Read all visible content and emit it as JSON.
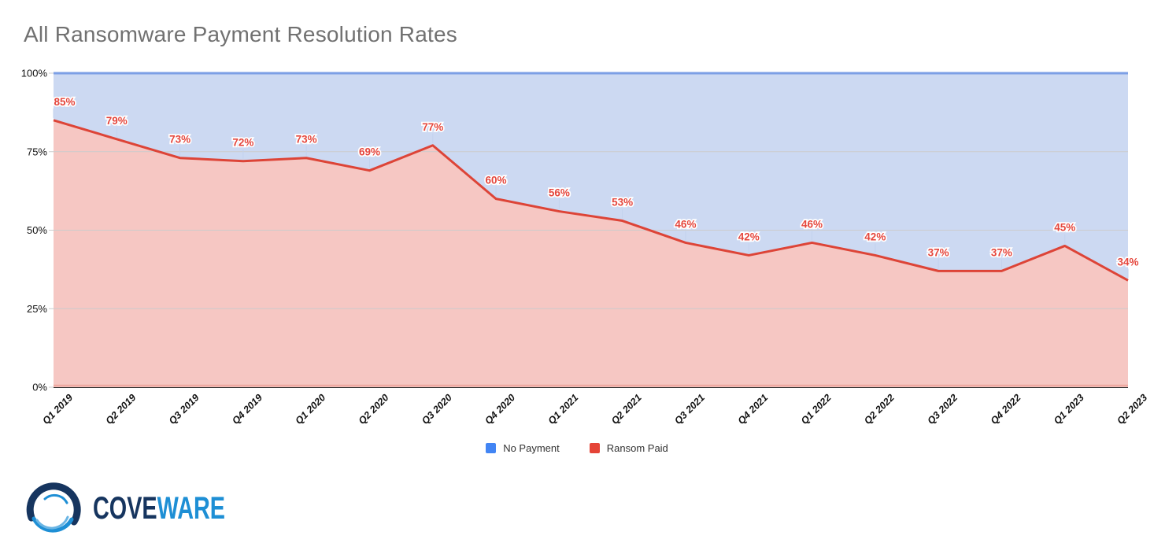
{
  "header": {
    "title": "All Ransomware Payment Resolution Rates"
  },
  "chart_data": {
    "type": "area",
    "stacked_percent": true,
    "title": "All Ransomware Payment Resolution Rates",
    "categories": [
      "Q1 2019",
      "Q2 2019",
      "Q3 2019",
      "Q4 2019",
      "Q1 2020",
      "Q2 2020",
      "Q3 2020",
      "Q4 2020",
      "Q1 2021",
      "Q2 2021",
      "Q3 2021",
      "Q4 2021",
      "Q1 2022",
      "Q2 2022",
      "Q3 2022",
      "Q4 2022",
      "Q1 2023",
      "Q2 2023"
    ],
    "series": [
      {
        "name": "No Payment",
        "legend_color": "#4285f4",
        "line_color": "#7c9fe5",
        "area_fill": "#ccd9f2",
        "values": [
          15,
          21,
          27,
          28,
          27,
          31,
          23,
          40,
          44,
          47,
          54,
          58,
          54,
          58,
          63,
          63,
          55,
          66
        ]
      },
      {
        "name": "Ransom Paid",
        "legend_color": "#e54437",
        "line_color": "#dd4437",
        "area_fill": "#f6c7c3",
        "values": [
          85,
          79,
          73,
          72,
          73,
          69,
          77,
          60,
          56,
          53,
          46,
          42,
          46,
          42,
          37,
          37,
          45,
          34
        ]
      }
    ],
    "data_labels": [
      "85%",
      "79%",
      "73%",
      "72%",
      "73%",
      "69%",
      "77%",
      "60%",
      "56%",
      "53%",
      "46%",
      "42%",
      "46%",
      "42%",
      "37%",
      "37%",
      "45%",
      "34%"
    ],
    "data_label_color": "#e5463c",
    "y_ticks": [
      "0%",
      "25%",
      "50%",
      "75%",
      "100%"
    ],
    "y_tick_values": [
      0,
      25,
      50,
      75,
      100
    ],
    "ylim": [
      0,
      100
    ],
    "grid": true,
    "gridline_color": "#cccccc",
    "baseline_color": "#333333",
    "baseline_accent_color": "#efa9a2",
    "leader_line_color": "#c3d2ee",
    "axis_text_color": "#111111",
    "legend_position": "bottom"
  },
  "legend": {
    "items": [
      {
        "label": "No Payment",
        "color": "#4285f4"
      },
      {
        "label": "Ransom Paid",
        "color": "#e54437"
      }
    ]
  },
  "brand": {
    "cove": "COVE",
    "ware": "WARE",
    "navy": "#16355f",
    "blue": "#1e8fd5",
    "light_blue": "#6ab5e4"
  }
}
